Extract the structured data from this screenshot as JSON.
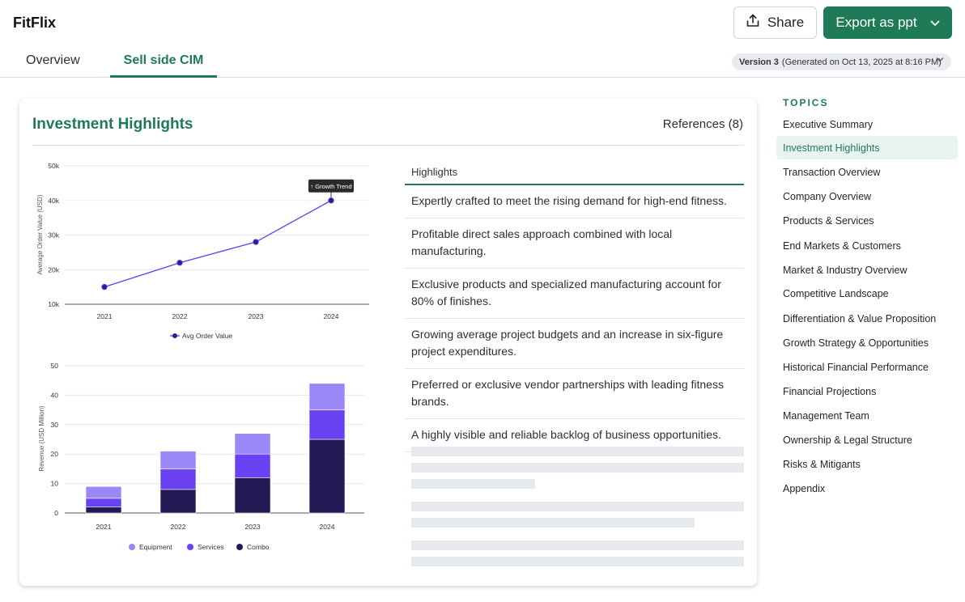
{
  "app": {
    "title": "FitFlix"
  },
  "header": {
    "share_label": "Share",
    "export_label": "Export as ppt"
  },
  "tabs": [
    {
      "label": "Overview"
    },
    {
      "label": "Sell side CIM",
      "active": true
    }
  ],
  "version": {
    "label": "Version 3",
    "detail": "(Generated on Oct 13, 2025 at 8:16 PM)"
  },
  "card": {
    "title": "Investment Highlights",
    "references": "References (8)"
  },
  "highlights": {
    "header": "Highlights",
    "rows": [
      "Expertly crafted to meet the rising demand for high-end fitness.",
      "Profitable direct sales approach combined with local manufacturing.",
      "Exclusive products and specialized manufacturing account for 80% of finishes.",
      "Growing average project budgets and an increase in six-figure project expenditures.",
      "Preferred or exclusive vendor partnerships with leading fitness brands.",
      "A highly visible and reliable backlog of business opportunities."
    ]
  },
  "topics": {
    "title": "TOPICS",
    "items": [
      "Executive Summary",
      "Investment Highlights",
      "Transaction Overview",
      "Company Overview",
      "Products & Services",
      "End Markets & Customers",
      "Market & Industry Overview",
      "Competitive Landscape",
      "Differentiation & Value Proposition",
      "Growth Strategy & Opportunities",
      "Historical Financial Performance",
      "Financial Projections",
      "Management Team",
      "Ownership & Legal Structure",
      "Risks & Mitigants",
      "Appendix"
    ],
    "active_index": 1
  },
  "colors": {
    "accent": "#1e7a57",
    "line": "#5b3df5",
    "equipment": "#9b87f5",
    "services": "#6a42f2",
    "combo": "#231a55"
  },
  "chart_data": [
    {
      "type": "line",
      "x": [
        "2021",
        "2022",
        "2023",
        "2024"
      ],
      "series": [
        {
          "name": "Avg Order Value",
          "values": [
            15000,
            22000,
            28000,
            40000
          ]
        }
      ],
      "ylabel": "Average Order Value (USD)",
      "yticks": [
        "10k",
        "20k",
        "30k",
        "40k",
        "50k"
      ],
      "ylim": [
        10000,
        50000
      ],
      "annotation": {
        "text": "↑ Growth Trend",
        "x": "2024"
      },
      "grid": true,
      "legend": "bottom"
    },
    {
      "type": "bar",
      "stacked": true,
      "categories": [
        "2021",
        "2022",
        "2023",
        "2024"
      ],
      "series": [
        {
          "name": "Combo",
          "values": [
            2,
            8,
            12,
            25
          ]
        },
        {
          "name": "Services",
          "values": [
            3,
            7,
            8,
            10
          ]
        },
        {
          "name": "Equipment",
          "values": [
            4,
            6,
            7,
            9
          ]
        }
      ],
      "legend_order": [
        "Equipment",
        "Services",
        "Combo"
      ],
      "ylabel": "Revenue (USD Million)",
      "yticks": [
        0,
        10,
        20,
        30,
        40,
        50
      ],
      "ylim": [
        0,
        50
      ],
      "grid": true,
      "legend": "bottom"
    }
  ]
}
